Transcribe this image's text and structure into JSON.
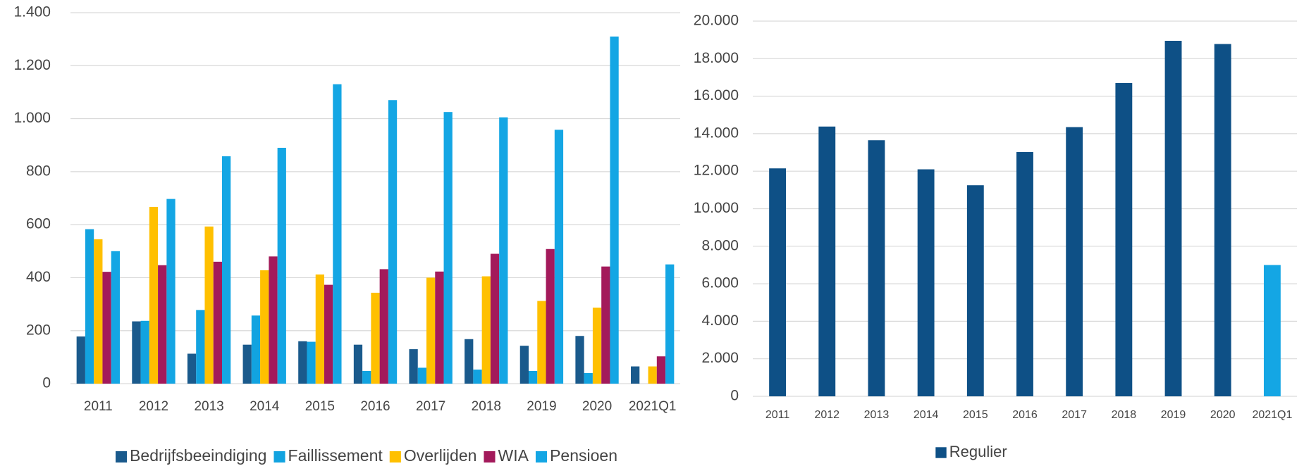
{
  "chart_data": [
    {
      "type": "bar",
      "categories": [
        "2011",
        "2012",
        "2013",
        "2014",
        "2015",
        "2016",
        "2017",
        "2018",
        "2019",
        "2020",
        "2021Q1"
      ],
      "series": [
        {
          "name": "Bedrijfsbeeindiging",
          "color": "#1a5a8c",
          "values": [
            178,
            235,
            113,
            147,
            160,
            147,
            130,
            168,
            143,
            180,
            65
          ]
        },
        {
          "name": "Faillissement",
          "color": "#12a3e0",
          "values": [
            583,
            237,
            278,
            257,
            158,
            48,
            60,
            53,
            48,
            40,
            null
          ]
        },
        {
          "name": "Overlijden",
          "color": "#ffc000",
          "values": [
            545,
            667,
            593,
            428,
            412,
            343,
            400,
            405,
            312,
            287,
            65
          ]
        },
        {
          "name": "WIA",
          "color": "#a31a5b",
          "values": [
            422,
            447,
            460,
            480,
            373,
            432,
            423,
            490,
            508,
            442,
            103
          ]
        },
        {
          "name": "Pensioen",
          "color": "#14a6e4",
          "values": [
            500,
            697,
            858,
            890,
            1130,
            1070,
            1025,
            1005,
            958,
            1310,
            450
          ]
        }
      ],
      "ylim": [
        0,
        1400
      ],
      "yticks": [
        0,
        200,
        400,
        600,
        800,
        {
          "value": 1000,
          "label": "1.000"
        },
        {
          "value": 1200,
          "label": "1.200"
        },
        {
          "value": 1400,
          "label": "1.400"
        }
      ],
      "grid": true,
      "legend": "bottom"
    },
    {
      "type": "bar",
      "categories": [
        "2011",
        "2012",
        "2013",
        "2014",
        "2015",
        "2016",
        "2017",
        "2018",
        "2019",
        "2020",
        "2021Q1"
      ],
      "series": [
        {
          "name": "Regulier",
          "color": "#0e5086",
          "colors": [
            "#0e5086",
            "#0e5086",
            "#0e5086",
            "#0e5086",
            "#0e5086",
            "#0e5086",
            "#0e5086",
            "#0e5086",
            "#0e5086",
            "#0e5086",
            "#14a6e4"
          ],
          "values": [
            12150,
            14380,
            13650,
            12100,
            11250,
            13020,
            14350,
            16700,
            18950,
            18780,
            7000
          ]
        }
      ],
      "ylim": [
        0,
        20000
      ],
      "yticks": [
        0,
        {
          "value": 2000,
          "label": "2.000"
        },
        {
          "value": 4000,
          "label": "4.000"
        },
        {
          "value": 6000,
          "label": "6.000"
        },
        {
          "value": 8000,
          "label": "8.000"
        },
        {
          "value": 10000,
          "label": "10.000"
        },
        {
          "value": 12000,
          "label": "12.000"
        },
        {
          "value": 14000,
          "label": "14.000"
        },
        {
          "value": 16000,
          "label": "16.000"
        },
        {
          "value": 18000,
          "label": "18.000"
        },
        {
          "value": 20000,
          "label": "20.000"
        }
      ],
      "grid": true,
      "legend": "bottom"
    }
  ]
}
